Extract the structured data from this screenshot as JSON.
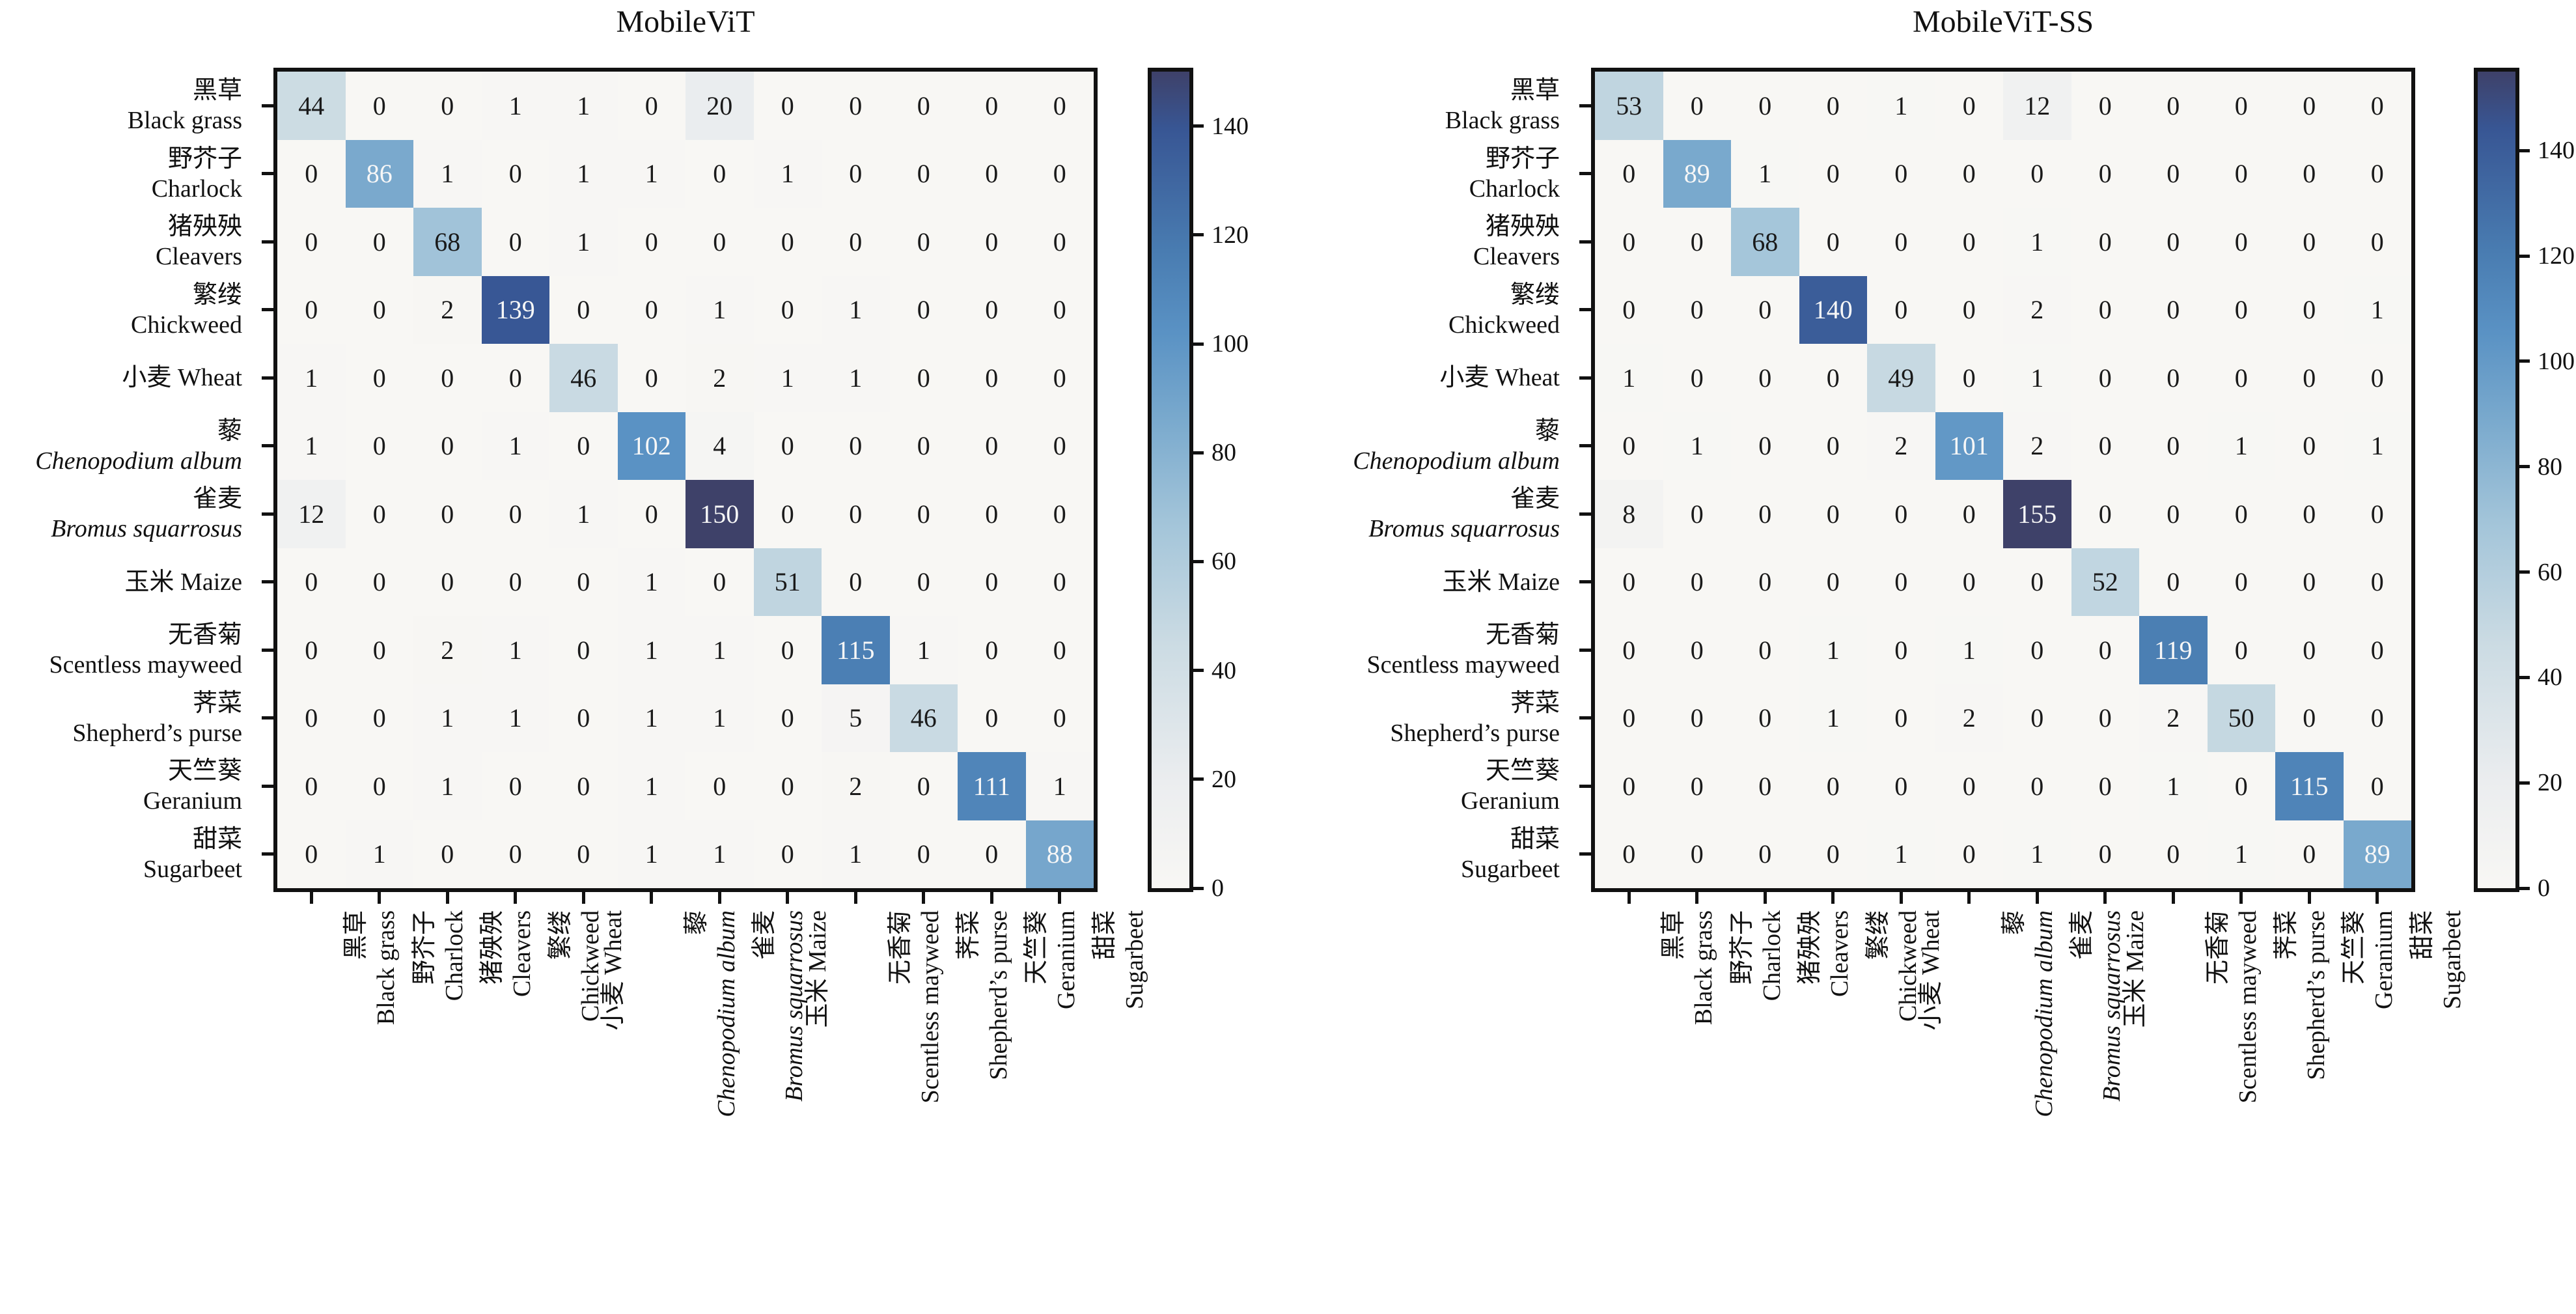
{
  "classes": [
    {
      "zh": "黑草",
      "en": "Black grass",
      "italic": false,
      "single_line": false
    },
    {
      "zh": "野芥子",
      "en": "Charlock",
      "italic": false,
      "single_line": false
    },
    {
      "zh": "猪殃殃",
      "en": "Cleavers",
      "italic": false,
      "single_line": false
    },
    {
      "zh": "繁缕",
      "en": "Chickweed",
      "italic": false,
      "single_line": false
    },
    {
      "zh": "小麦",
      "en": "Wheat",
      "italic": false,
      "single_line": true
    },
    {
      "zh": "藜",
      "en": "Chenopodium album",
      "italic": true,
      "single_line": false
    },
    {
      "zh": "雀麦",
      "en": "Bromus squarrosus",
      "italic": true,
      "single_line": false
    },
    {
      "zh": "玉米",
      "en": "Maize",
      "italic": false,
      "single_line": true
    },
    {
      "zh": "无香菊",
      "en": "Scentless mayweed",
      "italic": false,
      "single_line": false
    },
    {
      "zh": "荠菜",
      "en": "Shepherd’s purse",
      "italic": false,
      "single_line": false
    },
    {
      "zh": "天竺葵",
      "en": "Geranium",
      "italic": false,
      "single_line": false
    },
    {
      "zh": "甜菜",
      "en": "Sugarbeet",
      "italic": false,
      "single_line": false
    }
  ],
  "chart_data": [
    {
      "type": "heatmap",
      "title": "MobileViT",
      "vmax": 150,
      "colorbar_ticks": [
        0,
        20,
        40,
        60,
        80,
        100,
        120,
        140
      ],
      "legend_position": "right-colorbar",
      "grid": false,
      "matrix": [
        [
          44,
          0,
          0,
          1,
          1,
          0,
          20,
          0,
          0,
          0,
          0,
          0
        ],
        [
          0,
          86,
          1,
          0,
          1,
          1,
          0,
          1,
          0,
          0,
          0,
          0
        ],
        [
          0,
          0,
          68,
          0,
          1,
          0,
          0,
          0,
          0,
          0,
          0,
          0
        ],
        [
          0,
          0,
          2,
          139,
          0,
          0,
          1,
          0,
          1,
          0,
          0,
          0
        ],
        [
          1,
          0,
          0,
          0,
          46,
          0,
          2,
          1,
          1,
          0,
          0,
          0
        ],
        [
          1,
          0,
          0,
          1,
          0,
          102,
          4,
          0,
          0,
          0,
          0,
          0
        ],
        [
          12,
          0,
          0,
          0,
          1,
          0,
          150,
          0,
          0,
          0,
          0,
          0
        ],
        [
          0,
          0,
          0,
          0,
          0,
          1,
          0,
          51,
          0,
          0,
          0,
          0
        ],
        [
          0,
          0,
          2,
          1,
          0,
          1,
          1,
          0,
          115,
          1,
          0,
          0
        ],
        [
          0,
          0,
          1,
          1,
          0,
          1,
          1,
          0,
          5,
          46,
          0,
          0
        ],
        [
          0,
          0,
          1,
          0,
          0,
          1,
          0,
          0,
          2,
          0,
          111,
          1
        ],
        [
          0,
          1,
          0,
          0,
          0,
          1,
          1,
          0,
          1,
          0,
          0,
          88
        ]
      ]
    },
    {
      "type": "heatmap",
      "title": "MobileViT-SS",
      "vmax": 155,
      "colorbar_ticks": [
        0,
        20,
        40,
        60,
        80,
        100,
        120,
        140
      ],
      "legend_position": "right-colorbar",
      "grid": false,
      "matrix": [
        [
          53,
          0,
          0,
          0,
          1,
          0,
          12,
          0,
          0,
          0,
          0,
          0
        ],
        [
          0,
          89,
          1,
          0,
          0,
          0,
          0,
          0,
          0,
          0,
          0,
          0
        ],
        [
          0,
          0,
          68,
          0,
          0,
          0,
          1,
          0,
          0,
          0,
          0,
          0
        ],
        [
          0,
          0,
          0,
          140,
          0,
          0,
          2,
          0,
          0,
          0,
          0,
          1
        ],
        [
          1,
          0,
          0,
          0,
          49,
          0,
          1,
          0,
          0,
          0,
          0,
          0
        ],
        [
          0,
          1,
          0,
          0,
          2,
          101,
          2,
          0,
          0,
          1,
          0,
          1
        ],
        [
          8,
          0,
          0,
          0,
          0,
          0,
          155,
          0,
          0,
          0,
          0,
          0
        ],
        [
          0,
          0,
          0,
          0,
          0,
          0,
          0,
          52,
          0,
          0,
          0,
          0
        ],
        [
          0,
          0,
          0,
          1,
          0,
          1,
          0,
          0,
          119,
          0,
          0,
          0
        ],
        [
          0,
          0,
          0,
          1,
          0,
          2,
          0,
          0,
          2,
          50,
          0,
          0
        ],
        [
          0,
          0,
          0,
          0,
          0,
          0,
          0,
          0,
          1,
          0,
          115,
          0
        ],
        [
          0,
          0,
          0,
          0,
          1,
          0,
          1,
          0,
          0,
          1,
          0,
          89
        ]
      ]
    }
  ],
  "colors": {
    "background": "#ffffff",
    "axis": "#111111",
    "cell_text_dark": "#1a1a1a",
    "cell_text_light": "#f7f7f7",
    "colormap_stops": [
      [
        0.0,
        "#f8f7f4"
      ],
      [
        0.13,
        "#ebedef"
      ],
      [
        0.3,
        "#cbdbe3"
      ],
      [
        0.45,
        "#a2c4d9"
      ],
      [
        0.575,
        "#79a9cd"
      ],
      [
        0.68,
        "#5a92c4"
      ],
      [
        0.78,
        "#497cb1"
      ],
      [
        0.93,
        "#385694"
      ],
      [
        1.0,
        "#3e4169"
      ]
    ]
  }
}
